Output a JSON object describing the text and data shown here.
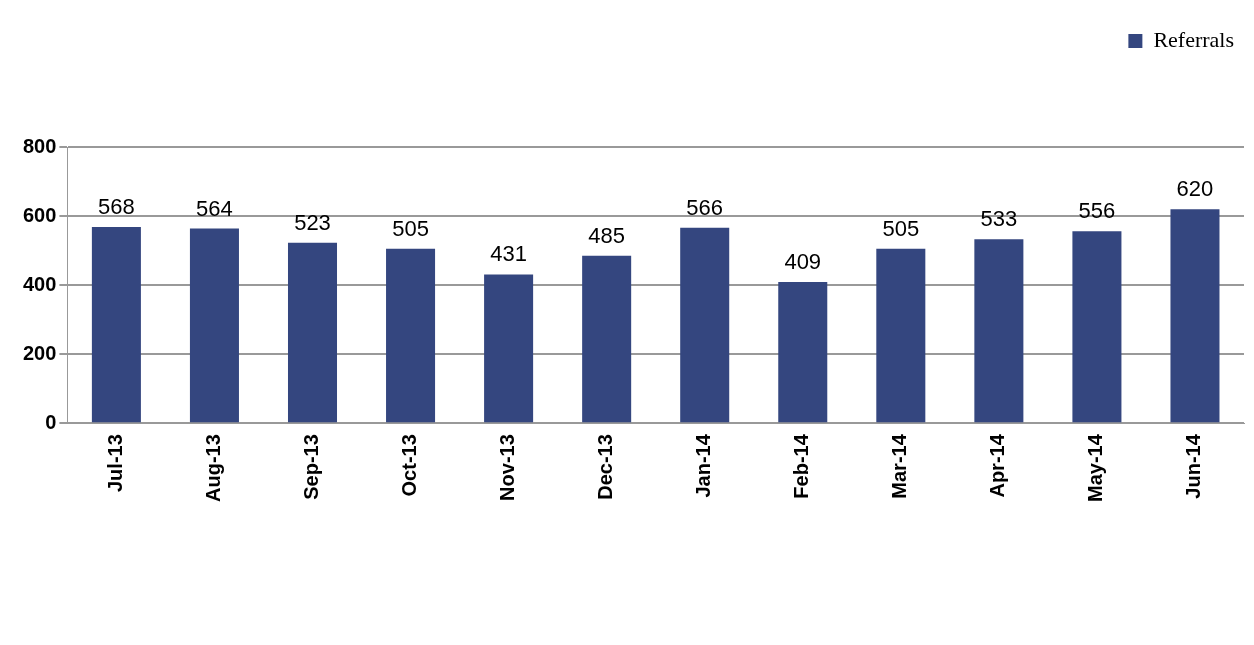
{
  "chart_data": {
    "type": "bar",
    "categories": [
      "Jul-13",
      "Aug-13",
      "Sep-13",
      "Oct-13",
      "Nov-13",
      "Dec-13",
      "Jan-14",
      "Feb-14",
      "Mar-14",
      "Apr-14",
      "May-14",
      "Jun-14"
    ],
    "series": [
      {
        "name": "Referrals",
        "color": "#34467f",
        "values": [
          568,
          564,
          523,
          505,
          431,
          485,
          566,
          409,
          505,
          533,
          556,
          620
        ]
      }
    ],
    "ylim": [
      0,
      800
    ],
    "yticks": [
      0,
      200,
      400,
      600,
      800
    ],
    "grid": "y",
    "legend": "top right",
    "data_labels": true
  }
}
